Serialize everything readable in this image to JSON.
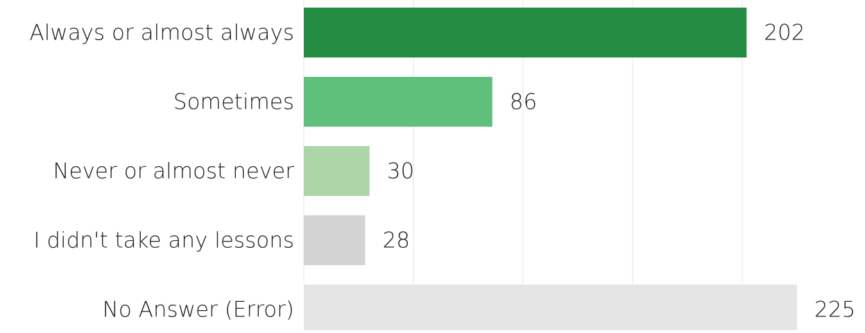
{
  "chart_data": {
    "type": "bar",
    "orientation": "horizontal",
    "categories": [
      "Always or almost always",
      "Sometimes",
      "Never or almost never",
      "I didn't take any lessons",
      "No Answer (Error)"
    ],
    "values": [
      202,
      86,
      30,
      28,
      225
    ],
    "colors": [
      "#258c44",
      "#5ec07b",
      "#acd5a8",
      "#d3d3d3",
      "#e5e5e5"
    ],
    "xlim": [
      0,
      250
    ],
    "xticks": [
      0,
      50,
      100,
      150,
      200
    ],
    "grid": true
  }
}
